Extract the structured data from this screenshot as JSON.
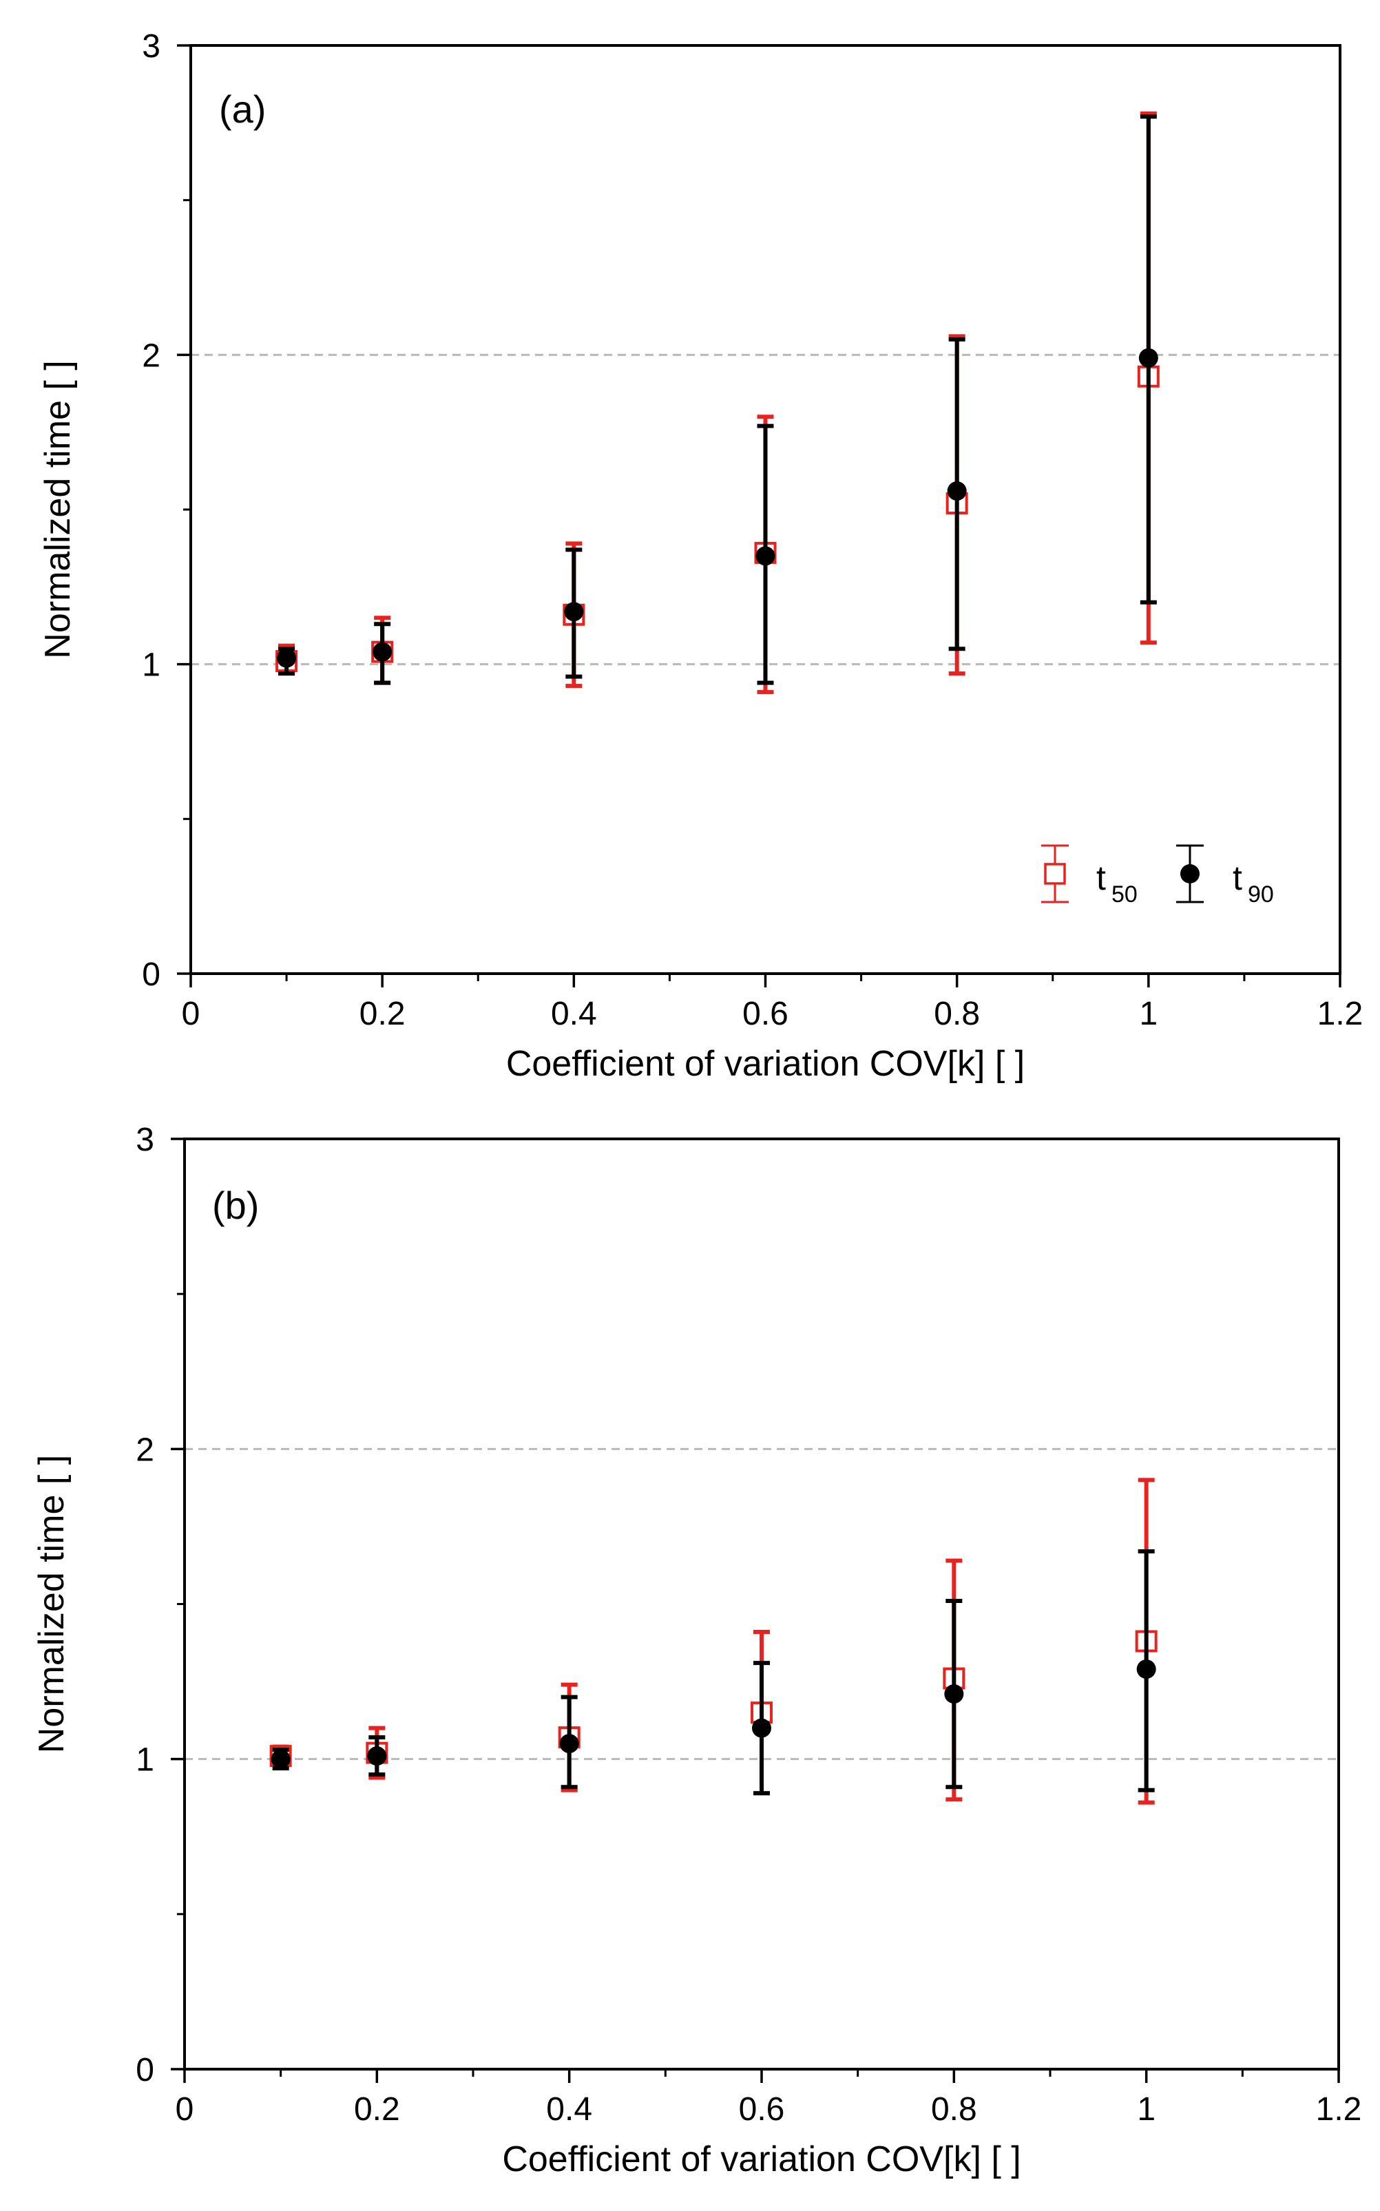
{
  "colors": {
    "t50": "#e8231f",
    "t90": "#000000",
    "grid": "#b9b9b9",
    "axis": "#000000"
  },
  "legend": {
    "t50_main": "t",
    "t50_sub": "50",
    "t90_main": "t",
    "t90_sub": "90"
  },
  "chart_data": [
    {
      "type": "scatter",
      "panel_label": "(a)",
      "xlabel": "Coefficient of variation COV[k] [ ]",
      "ylabel": "Normalized time [ ]",
      "xlim": [
        0,
        1.2
      ],
      "ylim": [
        0,
        3
      ],
      "x_ticks": [
        "0",
        "0.2",
        "0.4",
        "0.6",
        "0.8",
        "1",
        "1.2"
      ],
      "y_ticks": [
        "0",
        "1",
        "2",
        "3"
      ],
      "x_tick_values": [
        0,
        0.2,
        0.4,
        0.6,
        0.8,
        1.0,
        1.2
      ],
      "y_tick_values": [
        0,
        1,
        2,
        3
      ],
      "reference_lines": [
        1,
        2
      ],
      "legend_position": "bottom-right",
      "series": [
        {
          "name": "t50",
          "marker": "open-square",
          "points": [
            {
              "x": 0.1,
              "y": 1.01,
              "low": 0.97,
              "high": 1.06
            },
            {
              "x": 0.2,
              "y": 1.04,
              "low": 0.94,
              "high": 1.15
            },
            {
              "x": 0.4,
              "y": 1.16,
              "low": 0.93,
              "high": 1.39
            },
            {
              "x": 0.6,
              "y": 1.36,
              "low": 0.91,
              "high": 1.8
            },
            {
              "x": 0.8,
              "y": 1.52,
              "low": 0.97,
              "high": 2.06
            },
            {
              "x": 1.0,
              "y": 1.93,
              "low": 1.07,
              "high": 2.78
            }
          ]
        },
        {
          "name": "t90",
          "marker": "filled-circle",
          "points": [
            {
              "x": 0.1,
              "y": 1.02,
              "low": 0.97,
              "high": 1.05
            },
            {
              "x": 0.2,
              "y": 1.04,
              "low": 0.94,
              "high": 1.13
            },
            {
              "x": 0.4,
              "y": 1.17,
              "low": 0.96,
              "high": 1.37
            },
            {
              "x": 0.6,
              "y": 1.35,
              "low": 0.94,
              "high": 1.77
            },
            {
              "x": 0.8,
              "y": 1.56,
              "low": 1.05,
              "high": 2.05
            },
            {
              "x": 1.0,
              "y": 1.99,
              "low": 1.2,
              "high": 2.77
            }
          ]
        }
      ]
    },
    {
      "type": "scatter",
      "panel_label": "(b)",
      "xlabel": "Coefficient of variation COV[k] [ ]",
      "ylabel": "Normalized time [ ]",
      "xlim": [
        0,
        1.2
      ],
      "ylim": [
        0,
        3
      ],
      "x_ticks": [
        "0",
        "0.2",
        "0.4",
        "0.6",
        "0.8",
        "1",
        "1.2"
      ],
      "y_ticks": [
        "0",
        "1",
        "2",
        "3"
      ],
      "x_tick_values": [
        0,
        0.2,
        0.4,
        0.6,
        0.8,
        1.0,
        1.2
      ],
      "y_tick_values": [
        0,
        1,
        2,
        3
      ],
      "reference_lines": [
        1,
        2
      ],
      "series": [
        {
          "name": "t50",
          "marker": "open-square",
          "points": [
            {
              "x": 0.1,
              "y": 1.01,
              "low": 0.98,
              "high": 1.04
            },
            {
              "x": 0.2,
              "y": 1.02,
              "low": 0.94,
              "high": 1.1
            },
            {
              "x": 0.4,
              "y": 1.07,
              "low": 0.9,
              "high": 1.24
            },
            {
              "x": 0.6,
              "y": 1.15,
              "low": 0.89,
              "high": 1.41
            },
            {
              "x": 0.8,
              "y": 1.26,
              "low": 0.87,
              "high": 1.64
            },
            {
              "x": 1.0,
              "y": 1.38,
              "low": 0.86,
              "high": 1.9
            }
          ]
        },
        {
          "name": "t90",
          "marker": "filled-circle",
          "points": [
            {
              "x": 0.1,
              "y": 1.0,
              "low": 0.97,
              "high": 1.03
            },
            {
              "x": 0.2,
              "y": 1.01,
              "low": 0.95,
              "high": 1.07
            },
            {
              "x": 0.4,
              "y": 1.05,
              "low": 0.91,
              "high": 1.2
            },
            {
              "x": 0.6,
              "y": 1.1,
              "low": 0.89,
              "high": 1.31
            },
            {
              "x": 0.8,
              "y": 1.21,
              "low": 0.91,
              "high": 1.51
            },
            {
              "x": 1.0,
              "y": 1.29,
              "low": 0.9,
              "high": 1.67
            }
          ]
        }
      ]
    }
  ]
}
